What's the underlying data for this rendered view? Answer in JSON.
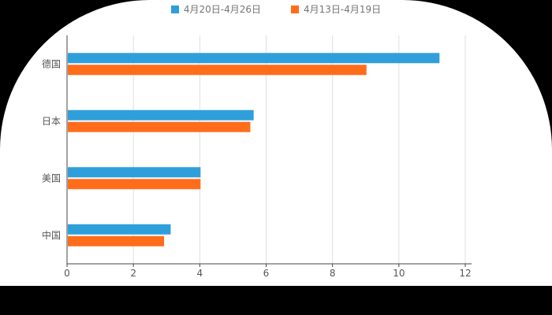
{
  "colors": {
    "page_background": "#000000",
    "panel_background": "#ffffff",
    "grid_line": "#e0e0e0",
    "axis_line": "#444444",
    "tick_label": "#555555",
    "category_label": "#555555",
    "legend_label": "#757575"
  },
  "legend": {
    "items": [
      {
        "label": "4月20日-4月26日",
        "color": "#2F9FDB"
      },
      {
        "label": "4月13日-4月19日",
        "color": "#FF6D1B"
      }
    ]
  },
  "chart_data": {
    "type": "bar",
    "orientation": "horizontal",
    "title": "",
    "xlabel": "",
    "ylabel": "",
    "categories": [
      "德国",
      "日本",
      "美国",
      "中国"
    ],
    "series": [
      {
        "name": "4月20日-4月26日",
        "color": "#2F9FDB",
        "values": [
          11.2,
          5.6,
          4.0,
          3.1
        ]
      },
      {
        "name": "4月13日-4月19日",
        "color": "#FF6D1B",
        "values": [
          9.0,
          5.5,
          4.0,
          2.9
        ]
      }
    ],
    "xlim": [
      0,
      12
    ],
    "xticks": [
      0,
      2,
      4,
      6,
      8,
      10,
      12
    ],
    "grid": true,
    "legend_position": "top"
  }
}
